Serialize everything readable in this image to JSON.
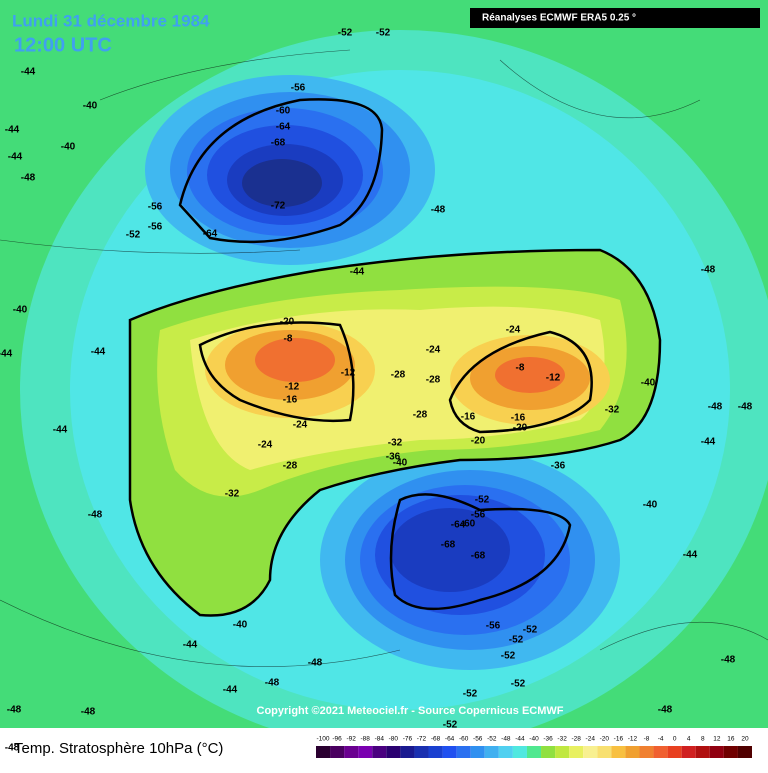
{
  "header": {
    "date": "Lundi 31 décembre 1984",
    "time": "12:00 UTC",
    "source": "Réanalyses ECMWF ERA5 0.25 °"
  },
  "copyright": "Copyright ©2021 Meteociel.fr - Source Copernicus ECMWF",
  "legend_title": "Temp. Stratosphère 10hPa (°C)",
  "colorbar": {
    "labels": [
      -100,
      -96,
      -92,
      -88,
      -84,
      -80,
      -76,
      -72,
      -68,
      -64,
      -60,
      -56,
      -52,
      -48,
      -44,
      -40,
      -36,
      -32,
      -28,
      -24,
      -20,
      -16,
      -12,
      -8,
      -4,
      0,
      4,
      8,
      12,
      16,
      20
    ],
    "colors": [
      "#2a0030",
      "#4a0060",
      "#6a0090",
      "#7a00b0",
      "#4a0080",
      "#2a0070",
      "#1a1a90",
      "#1a30b0",
      "#1a40d0",
      "#2050f0",
      "#2a70f0",
      "#3090f0",
      "#40b0f0",
      "#50d0f0",
      "#50e8e0",
      "#50e890",
      "#90e040",
      "#c0e840",
      "#e8f060",
      "#f8f090",
      "#f8e070",
      "#f8c040",
      "#f0a030",
      "#f08030",
      "#f06030",
      "#e84020",
      "#d02020",
      "#b01010",
      "#900010",
      "#700000",
      "#500000"
    ]
  },
  "contour_labels": [
    -52,
    -52,
    -56,
    -60,
    -64,
    -68,
    -72,
    -64,
    -56,
    -56,
    -52,
    -44,
    -44,
    -48,
    -40,
    -40,
    -44,
    -44,
    -48,
    -48,
    -40,
    -44,
    -44,
    -20,
    -8,
    -12,
    -16,
    -12,
    -28,
    -24,
    -28,
    -28,
    -24,
    -8,
    -12,
    -16,
    -16,
    -20,
    -20,
    -32,
    -36,
    -40,
    -36,
    -32,
    -40,
    -32,
    -28,
    -24,
    -24,
    -52,
    -56,
    -60,
    -64,
    -68,
    -68,
    -56,
    -52,
    -52,
    -52,
    -52,
    -52,
    -52,
    -40,
    -44,
    -48,
    -44,
    -48,
    -40,
    -44,
    -48,
    -44,
    -48,
    -48,
    -44,
    -48,
    -48,
    -48,
    -48,
    -48
  ]
}
